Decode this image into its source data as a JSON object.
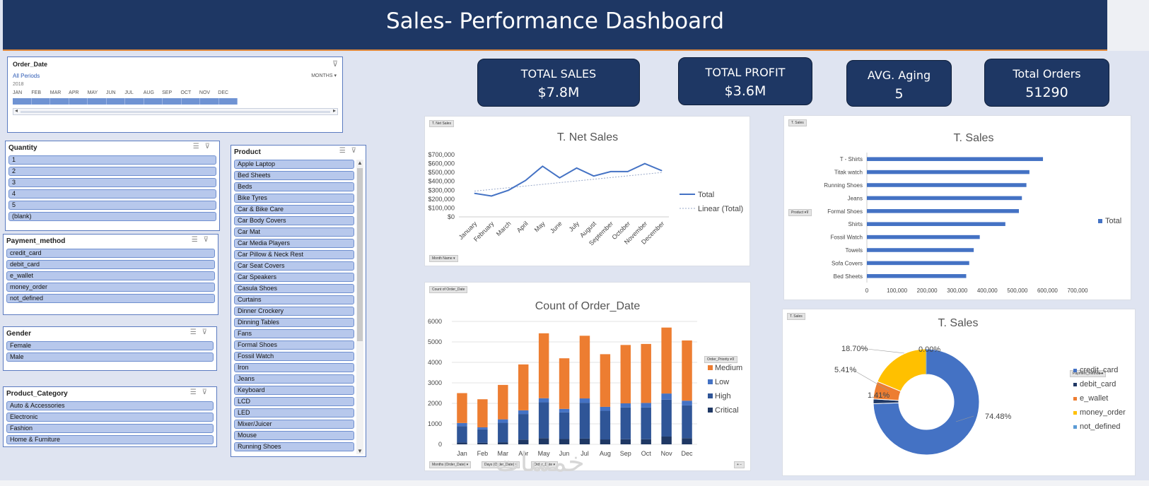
{
  "header": {
    "title": "Sales- Performance Dashboard"
  },
  "timeline": {
    "title": "Order_Date",
    "all_periods": "All Periods",
    "level": "MONTHS",
    "year": "2018",
    "months": [
      "JAN",
      "FEB",
      "MAR",
      "APR",
      "MAY",
      "JUN",
      "JUL",
      "AUG",
      "SEP",
      "OCT",
      "NOV",
      "DEC"
    ]
  },
  "slicers": {
    "quantity": {
      "title": "Quantity",
      "items": [
        "1",
        "2",
        "3",
        "4",
        "5",
        "(blank)"
      ]
    },
    "payment": {
      "title": "Payment_method",
      "items": [
        "credit_card",
        "debit_card",
        "e_wallet",
        "money_order",
        "not_defined"
      ]
    },
    "gender": {
      "title": "Gender",
      "items": [
        "Female",
        "Male"
      ]
    },
    "category": {
      "title": "Product_Category",
      "items": [
        "Auto & Accessories",
        "Electronic",
        "Fashion",
        "Home & Furniture"
      ]
    },
    "product": {
      "title": "Product",
      "items": [
        "Apple Laptop",
        "Bed Sheets",
        "Beds",
        "Bike Tyres",
        "Car & Bike Care",
        "Car Body Covers",
        "Car Mat",
        "Car Media Players",
        "Car Pillow & Neck Rest",
        "Car Seat Covers",
        "Car Speakers",
        "Casula Shoes",
        "Curtains",
        "Dinner Crockery",
        "Dinning Tables",
        "Fans",
        "Formal Shoes",
        "Fossil Watch",
        "Iron",
        "Jeans",
        "Keyboard",
        "LCD",
        "LED",
        "Mixer/Juicer",
        "Mouse",
        "Running Shoes"
      ]
    }
  },
  "kpis": [
    {
      "label": "TOTAL SALES",
      "value": "$7.8M"
    },
    {
      "label": "TOTAL PROFIT",
      "value": "$3.6M"
    },
    {
      "label": "AVG.  Aging",
      "value": "5"
    },
    {
      "label": "Total Orders",
      "value": "51290"
    }
  ],
  "panel_buttons": {
    "net_sales_top": "T. Net Sales",
    "net_sales_field": "Month Name",
    "count_top": "Count of Order_Date",
    "count_fields": [
      "Months (Order_Date)",
      "Days (Order_Date)",
      "Order_Date"
    ],
    "count_legend_field": "Order_Priority",
    "bar_top": "T. Sales",
    "bar_field": "Product",
    "pie_top": "T. Sales",
    "pie_legend_field": "Payment_method"
  },
  "watermark": "خمسات",
  "chart_data": [
    {
      "type": "line",
      "title": "T. Net Sales",
      "categories": [
        "January",
        "February",
        "March",
        "April",
        "May",
        "June",
        "July",
        "August",
        "September",
        "October",
        "November",
        "December"
      ],
      "series": [
        {
          "name": "Total",
          "values": [
            265000,
            235000,
            300000,
            410000,
            570000,
            440000,
            550000,
            460000,
            510000,
            510000,
            600000,
            520000
          ]
        }
      ],
      "trendline": {
        "name": "Linear (Total)",
        "values": [
          290000,
          500000
        ],
        "color": "#9aa9c9"
      },
      "y_ticks": [
        "$0",
        "$100,000",
        "$200,000",
        "$300,000",
        "$400,000",
        "$500,000",
        "$600,000",
        "$700,000"
      ],
      "ylim": [
        0,
        700000
      ],
      "legend": "right",
      "colors": {
        "Total": "#4472c4"
      }
    },
    {
      "type": "bar",
      "stacked": true,
      "title": "Count of Order_Date",
      "categories": [
        "Jan",
        "Feb",
        "Mar",
        "Apr",
        "May",
        "Jun",
        "Jul",
        "Aug",
        "Sep",
        "Oct",
        "Nov",
        "Dec"
      ],
      "series": [
        {
          "name": "Critical",
          "values": [
            90,
            80,
            100,
            230,
            300,
            260,
            280,
            240,
            250,
            250,
            380,
            300
          ],
          "color": "#1f3864"
        },
        {
          "name": "High",
          "values": [
            800,
            650,
            950,
            1250,
            1750,
            1300,
            1750,
            1400,
            1550,
            1550,
            1800,
            1600
          ],
          "color": "#2f5597"
        },
        {
          "name": "Low",
          "values": [
            150,
            100,
            170,
            180,
            200,
            170,
            210,
            190,
            200,
            220,
            300,
            230
          ],
          "color": "#4472c4"
        },
        {
          "name": "Medium",
          "values": [
            1460,
            1370,
            1680,
            2240,
            3170,
            2470,
            3060,
            2570,
            2850,
            2880,
            3220,
            2940
          ],
          "color": "#ed7d31"
        }
      ],
      "legend_order": [
        "Medium",
        "Low",
        "High",
        "Critical"
      ],
      "y_ticks": [
        "0",
        "1000",
        "2000",
        "3000",
        "4000",
        "5000",
        "6000"
      ],
      "ylim": [
        0,
        6000
      ],
      "legend": "right"
    },
    {
      "type": "bar",
      "orientation": "horizontal",
      "title": "T. Sales",
      "categories": [
        "T - Shirts",
        "Titak watch",
        "Running Shoes",
        "Jeans",
        "Formal Shoes",
        "Shirts",
        "Fossil Watch",
        "Towels",
        "Sofa Covers",
        "Bed Sheets"
      ],
      "series": [
        {
          "name": "Total",
          "values": [
            585000,
            540000,
            530000,
            515000,
            505000,
            460000,
            375000,
            355000,
            340000,
            330000
          ],
          "color": "#4472c4"
        }
      ],
      "x_ticks": [
        "0",
        "100,000",
        "200,000",
        "300,000",
        "400,000",
        "500,000",
        "600,000",
        "700,000"
      ],
      "xlim": [
        0,
        700000
      ],
      "legend": "right"
    },
    {
      "type": "pie",
      "donut": true,
      "title": "T. Sales",
      "labels": [
        "credit_card",
        "debit_card",
        "e_wallet",
        "money_order",
        "not_defined"
      ],
      "values": [
        74.48,
        1.41,
        5.41,
        18.7,
        0.0
      ],
      "value_labels": [
        "74.48%",
        "1.41%",
        "5.41%",
        "18.70%",
        "0.00%"
      ],
      "colors": [
        "#4472c4",
        "#203864",
        "#ed7d31",
        "#ffc000",
        "#5b9bd5"
      ],
      "legend": "right"
    }
  ]
}
